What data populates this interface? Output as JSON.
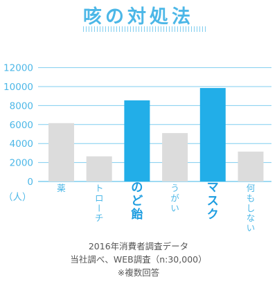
{
  "title": "咳の対処法",
  "colors": {
    "accent": "#4cb7e7",
    "bar_highlight": "#22aee8",
    "bar_default": "#dcdcdc",
    "gridline": "#7fcdef"
  },
  "chart_data": {
    "type": "bar",
    "title": "咳の対処法",
    "ylabel": "（人）",
    "ylim": [
      0,
      12000
    ],
    "yticks": [
      0,
      2000,
      4000,
      6000,
      8000,
      10000,
      12000
    ],
    "grid": true,
    "categories": [
      "薬",
      "トローチ",
      "のど飴",
      "うがい",
      "マスク",
      "何もしない"
    ],
    "values": [
      6150,
      2650,
      8550,
      5100,
      9850,
      3150
    ],
    "highlighted": [
      false,
      false,
      true,
      false,
      true,
      false
    ]
  },
  "source": {
    "line1": "2016年消費者調査データ",
    "line2": "当社調べ、WEB調査（n:30,000）",
    "line3": "※複数回答"
  }
}
